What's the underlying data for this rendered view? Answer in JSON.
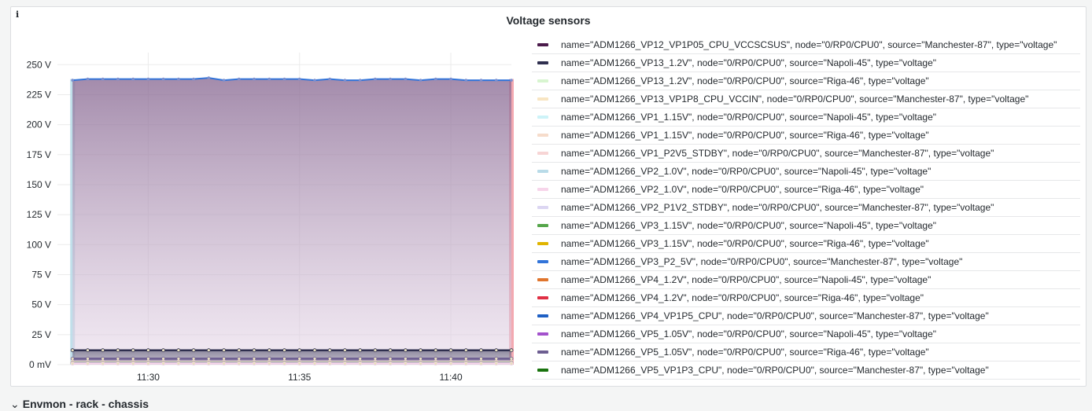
{
  "panel": {
    "title": "Voltage sensors",
    "info_icon": "info-icon"
  },
  "section": {
    "title": "Envmon - rack - chassis",
    "chevron_icon": "chevron-down-icon"
  },
  "chart_data": {
    "type": "area",
    "title": "Voltage sensors",
    "xlabel": "",
    "ylabel": "",
    "x_ticks": [
      "11:30",
      "11:35",
      "11:40"
    ],
    "y_ticks": [
      "0 mV",
      "25 V",
      "50 V",
      "75 V",
      "100 V",
      "125 V",
      "150 V",
      "175 V",
      "200 V",
      "225 V",
      "250 V"
    ],
    "ylim": [
      0,
      260
    ],
    "xlim": [
      "11:27",
      "11:42"
    ],
    "grid": true,
    "legend_position": "right",
    "x": [
      "11:27:30",
      "11:28",
      "11:28:30",
      "11:29",
      "11:29:30",
      "11:30",
      "11:30:30",
      "11:31",
      "11:31:30",
      "11:32",
      "11:32:30",
      "11:33",
      "11:33:30",
      "11:34",
      "11:34:30",
      "11:35",
      "11:35:30",
      "11:36",
      "11:36:30",
      "11:37",
      "11:37:30",
      "11:38",
      "11:38:30",
      "11:39",
      "11:39:30",
      "11:40",
      "11:40:30",
      "11:41",
      "11:41:30",
      "11:42"
    ],
    "series": [
      {
        "name": "name=\"ADM1266_VP12_VP1P05_CPU_VCCSCSUS\", node=\"0/RP0/CPU0\", source=\"Manchester-87\", type=\"voltage\"",
        "color": "#4b1b4b",
        "values": [
          1.05,
          1.05,
          1.05,
          1.05,
          1.05,
          1.05,
          1.05,
          1.05,
          1.05,
          1.05,
          1.05,
          1.05,
          1.05,
          1.05,
          1.05,
          1.05,
          1.05,
          1.05,
          1.05,
          1.05,
          1.05,
          1.05,
          1.05,
          1.05,
          1.05,
          1.05,
          1.05,
          1.05,
          1.05,
          1.05
        ]
      },
      {
        "name": "name=\"ADM1266_VP13_1.2V\", node=\"0/RP0/CPU0\", source=\"Napoli-45\", type=\"voltage\"",
        "color": "#2f2f4f",
        "values": [
          12,
          12,
          12,
          12,
          12,
          12,
          12,
          12,
          12,
          12,
          12,
          12,
          12,
          12,
          12,
          12,
          12,
          12,
          12,
          12,
          12,
          12,
          12,
          12,
          12,
          12,
          12,
          12,
          12,
          12
        ]
      },
      {
        "name": "name=\"ADM1266_VP13_1.2V\", node=\"0/RP0/CPU0\", source=\"Riga-46\", type=\"voltage\"",
        "color": "#d8f5d0",
        "values": [
          1.2,
          1.2,
          1.2,
          1.2,
          1.2,
          1.2,
          1.2,
          1.2,
          1.2,
          1.2,
          1.2,
          1.2,
          1.2,
          1.2,
          1.2,
          1.2,
          1.2,
          1.2,
          1.2,
          1.2,
          1.2,
          1.2,
          1.2,
          1.2,
          1.2,
          1.2,
          1.2,
          1.2,
          1.2,
          1.2
        ]
      },
      {
        "name": "name=\"ADM1266_VP13_VP1P8_CPU_VCCIN\", node=\"0/RP0/CPU0\", source=\"Manchester-87\", type=\"voltage\"",
        "color": "#f8e5c2",
        "values": [
          1.8,
          1.8,
          1.8,
          1.8,
          1.8,
          1.8,
          1.8,
          1.8,
          1.8,
          1.8,
          1.8,
          1.8,
          1.8,
          1.8,
          1.8,
          1.8,
          1.8,
          1.8,
          1.8,
          1.8,
          1.8,
          1.8,
          1.8,
          1.8,
          1.8,
          1.8,
          1.8,
          1.8,
          1.8,
          1.8
        ]
      },
      {
        "name": "name=\"ADM1266_VP1_1.15V\", node=\"0/RP0/CPU0\", source=\"Napoli-45\", type=\"voltage\"",
        "color": "#cdf3f8",
        "values": [
          1.15,
          1.15,
          1.15,
          1.15,
          1.15,
          1.15,
          1.15,
          1.15,
          1.15,
          1.15,
          1.15,
          1.15,
          1.15,
          1.15,
          1.15,
          1.15,
          1.15,
          1.15,
          1.15,
          1.15,
          1.15,
          1.15,
          1.15,
          1.15,
          1.15,
          1.15,
          1.15,
          1.15,
          1.15,
          1.15
        ]
      },
      {
        "name": "name=\"ADM1266_VP1_1.15V\", node=\"0/RP0/CPU0\", source=\"Riga-46\", type=\"voltage\"",
        "color": "#f6dccb",
        "values": [
          1.15,
          1.15,
          1.15,
          1.15,
          1.15,
          1.15,
          1.15,
          1.15,
          1.15,
          1.15,
          1.15,
          1.15,
          1.15,
          1.15,
          1.15,
          1.15,
          1.15,
          1.15,
          1.15,
          1.15,
          1.15,
          1.15,
          1.15,
          1.15,
          1.15,
          1.15,
          1.15,
          1.15,
          1.15,
          1.15
        ]
      },
      {
        "name": "name=\"ADM1266_VP1_P2V5_STDBY\", node=\"0/RP0/CPU0\", source=\"Manchester-87\", type=\"voltage\"",
        "color": "#f7d5d5",
        "values": [
          2.5,
          2.5,
          2.5,
          2.5,
          2.5,
          2.5,
          2.5,
          2.5,
          2.5,
          2.5,
          2.5,
          2.5,
          2.5,
          2.5,
          2.5,
          2.5,
          2.5,
          2.5,
          2.5,
          2.5,
          2.5,
          2.5,
          2.5,
          2.5,
          2.5,
          2.5,
          2.5,
          2.5,
          2.5,
          2.5
        ]
      },
      {
        "name": "name=\"ADM1266_VP2_1.0V\", node=\"0/RP0/CPU0\", source=\"Napoli-45\", type=\"voltage\"",
        "color": "#b9dbe8",
        "values": [
          1.0,
          1.0,
          1.0,
          1.0,
          1.0,
          1.0,
          1.0,
          1.0,
          1.0,
          1.0,
          1.0,
          1.0,
          1.0,
          1.0,
          1.0,
          1.0,
          1.0,
          1.0,
          1.0,
          1.0,
          1.0,
          1.0,
          1.0,
          1.0,
          1.0,
          1.0,
          1.0,
          1.0,
          1.0,
          1.0
        ]
      },
      {
        "name": "name=\"ADM1266_VP2_1.0V\", node=\"0/RP0/CPU0\", source=\"Riga-46\", type=\"voltage\"",
        "color": "#f7d5ea",
        "values": [
          1.0,
          1.0,
          1.0,
          1.0,
          1.0,
          1.0,
          1.0,
          1.0,
          1.0,
          1.0,
          1.0,
          1.0,
          1.0,
          1.0,
          1.0,
          1.0,
          1.0,
          1.0,
          1.0,
          1.0,
          1.0,
          1.0,
          1.0,
          1.0,
          1.0,
          1.0,
          1.0,
          1.0,
          1.0,
          1.0
        ]
      },
      {
        "name": "name=\"ADM1266_VP2_P1V2_STDBY\", node=\"0/RP0/CPU0\", source=\"Manchester-87\", type=\"voltage\"",
        "color": "#dcd6f2",
        "values": [
          1.2,
          1.2,
          1.2,
          1.2,
          1.2,
          1.2,
          1.2,
          1.2,
          1.2,
          1.2,
          1.2,
          1.2,
          1.2,
          1.2,
          1.2,
          1.2,
          1.2,
          1.2,
          1.2,
          1.2,
          1.2,
          1.2,
          1.2,
          1.2,
          1.2,
          1.2,
          1.2,
          1.2,
          1.2,
          1.2
        ]
      },
      {
        "name": "name=\"ADM1266_VP3_1.15V\", node=\"0/RP0/CPU0\", source=\"Napoli-45\", type=\"voltage\"",
        "color": "#56a64b",
        "values": [
          1.15,
          1.15,
          1.15,
          1.15,
          1.15,
          1.15,
          1.15,
          1.15,
          1.15,
          1.15,
          1.15,
          1.15,
          1.15,
          1.15,
          1.15,
          1.15,
          1.15,
          1.15,
          1.15,
          1.15,
          1.15,
          1.15,
          1.15,
          1.15,
          1.15,
          1.15,
          1.15,
          1.15,
          1.15,
          1.15
        ]
      },
      {
        "name": "name=\"ADM1266_VP3_1.15V\", node=\"0/RP0/CPU0\", source=\"Riga-46\", type=\"voltage\"",
        "color": "#e0b400",
        "values": [
          1.15,
          1.15,
          1.15,
          1.15,
          1.15,
          1.15,
          1.15,
          1.15,
          1.15,
          1.15,
          1.15,
          1.15,
          1.15,
          1.15,
          1.15,
          1.15,
          1.15,
          1.15,
          1.15,
          1.15,
          1.15,
          1.15,
          1.15,
          1.15,
          1.15,
          1.15,
          1.15,
          1.15,
          1.15,
          1.15
        ]
      },
      {
        "name": "name=\"ADM1266_VP3_P2_5V\", node=\"0/RP0/CPU0\", source=\"Manchester-87\", type=\"voltage\"",
        "color": "#3274d9",
        "values": [
          237,
          238,
          238,
          238,
          238,
          238,
          238,
          238,
          238,
          239,
          237,
          238,
          238,
          238,
          238,
          238,
          237,
          238,
          237,
          237,
          238,
          238,
          238,
          237,
          238,
          238,
          237,
          237,
          237,
          237
        ]
      },
      {
        "name": "name=\"ADM1266_VP4_1.2V\", node=\"0/RP0/CPU0\", source=\"Napoli-45\", type=\"voltage\"",
        "color": "#e0752d",
        "values": [
          1.2,
          1.2,
          1.2,
          1.2,
          1.2,
          1.2,
          1.2,
          1.2,
          1.2,
          1.2,
          1.2,
          1.2,
          1.2,
          1.2,
          1.2,
          1.2,
          1.2,
          1.2,
          1.2,
          1.2,
          1.2,
          1.2,
          1.2,
          1.2,
          1.2,
          1.2,
          1.2,
          1.2,
          1.2,
          1.2
        ]
      },
      {
        "name": "name=\"ADM1266_VP4_1.2V\", node=\"0/RP0/CPU0\", source=\"Riga-46\", type=\"voltage\"",
        "color": "#e02f44",
        "values": [
          1.2,
          1.2,
          1.2,
          1.2,
          1.2,
          1.2,
          1.2,
          1.2,
          1.2,
          1.2,
          1.2,
          1.2,
          1.2,
          1.2,
          1.2,
          1.2,
          1.2,
          1.2,
          1.2,
          1.2,
          1.2,
          1.2,
          1.2,
          1.2,
          1.2,
          1.2,
          1.2,
          1.2,
          1.2,
          1.2
        ]
      },
      {
        "name": "name=\"ADM1266_VP4_VP1P5_CPU\", node=\"0/RP0/CPU0\", source=\"Manchester-87\", type=\"voltage\"",
        "color": "#1f60c4",
        "values": [
          1.5,
          1.5,
          1.5,
          1.5,
          1.5,
          1.5,
          1.5,
          1.5,
          1.5,
          1.5,
          1.5,
          1.5,
          1.5,
          1.5,
          1.5,
          1.5,
          1.5,
          1.5,
          1.5,
          1.5,
          1.5,
          1.5,
          1.5,
          1.5,
          1.5,
          1.5,
          1.5,
          1.5,
          1.5,
          1.5
        ]
      },
      {
        "name": "name=\"ADM1266_VP5_1.05V\", node=\"0/RP0/CPU0\", source=\"Napoli-45\", type=\"voltage\"",
        "color": "#a352cc",
        "values": [
          1.05,
          1.05,
          1.05,
          1.05,
          1.05,
          1.05,
          1.05,
          1.05,
          1.05,
          1.05,
          1.05,
          1.05,
          1.05,
          1.05,
          1.05,
          1.05,
          1.05,
          1.05,
          1.05,
          1.05,
          1.05,
          1.05,
          1.05,
          1.05,
          1.05,
          1.05,
          1.05,
          1.05,
          1.05,
          1.05
        ]
      },
      {
        "name": "name=\"ADM1266_VP5_1.05V\", node=\"0/RP0/CPU0\", source=\"Riga-46\", type=\"voltage\"",
        "color": "#6d5e91",
        "values": [
          5,
          5,
          5,
          5,
          5,
          5,
          5,
          5,
          5,
          5,
          5,
          5,
          5,
          5,
          5,
          5,
          5,
          5,
          5,
          5,
          5,
          5,
          5,
          5,
          5,
          5,
          5,
          5,
          5,
          5
        ]
      },
      {
        "name": "name=\"ADM1266_VP5_VP1P3_CPU\", node=\"0/RP0/CPU0\", source=\"Manchester-87\", type=\"voltage\"",
        "color": "#19730e",
        "values": [
          1.3,
          1.3,
          1.3,
          1.3,
          1.3,
          1.3,
          1.3,
          1.3,
          1.3,
          1.3,
          1.3,
          1.3,
          1.3,
          1.3,
          1.3,
          1.3,
          1.3,
          1.3,
          1.3,
          1.3,
          1.3,
          1.3,
          1.3,
          1.3,
          1.3,
          1.3,
          1.3,
          1.3,
          1.3,
          1.3
        ]
      }
    ]
  }
}
